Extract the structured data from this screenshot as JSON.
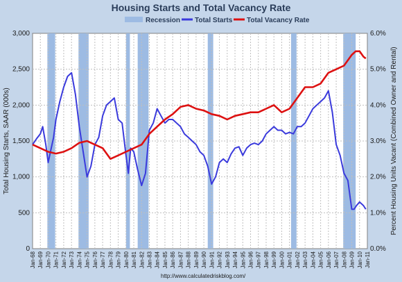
{
  "chart_data": {
    "type": "line",
    "title": "Housing Starts and Total Vacancy Rate",
    "source": "http://www.calculatedriskblog.com/",
    "legend": {
      "placement": "top-center",
      "entries": [
        "Recession",
        "Total Starts",
        "Total Vacancy Rate"
      ]
    },
    "xlabel": "",
    "ylabel_left": "Total Housing Starts, SAAR (000s)",
    "ylabel_right": "Percent Housing Units Vacant (Combined Owner and Rental)",
    "ylim_left": [
      0,
      3000
    ],
    "ylim_right": [
      0.0,
      6.0
    ],
    "yticks_left": [
      "0",
      "500",
      "1,000",
      "1,500",
      "2,000",
      "2,500",
      "3,000"
    ],
    "yticks_right": [
      "0.0%",
      "1.0%",
      "2.0%",
      "3.0%",
      "4.0%",
      "5.0%",
      "6.0%"
    ],
    "x_range": [
      1968.0,
      2011.0
    ],
    "x_ticks": [
      "Jan-68",
      "Jan-69",
      "Jan-70",
      "Jan-71",
      "Jan-72",
      "Jan-73",
      "Jan-74",
      "Jan-75",
      "Jan-76",
      "Jan-77",
      "Jan-78",
      "Jan-79",
      "Jan-80",
      "Jan-81",
      "Jan-82",
      "Jan-83",
      "Jan-84",
      "Jan-85",
      "Jan-86",
      "Jan-87",
      "Jan-88",
      "Jan-89",
      "Jan-90",
      "Jan-91",
      "Jan-92",
      "Jan-93",
      "Jan-94",
      "Jan-95",
      "Jan-96",
      "Jan-97",
      "Jan-98",
      "Jan-99",
      "Jan-00",
      "Jan-01",
      "Jan-02",
      "Jan-03",
      "Jan-04",
      "Jan-05",
      "Jan-06",
      "Jan-07",
      "Jan-08",
      "Jan-09",
      "Jan-10",
      "Jan-11"
    ],
    "grid": true,
    "recessions": [
      [
        1969.9,
        1970.9
      ],
      [
        1973.9,
        1975.2
      ],
      [
        1980.0,
        1980.5
      ],
      [
        1981.5,
        1982.9
      ],
      [
        1990.5,
        1991.2
      ],
      [
        2001.2,
        2001.9
      ],
      [
        2007.9,
        2009.5
      ]
    ],
    "series": [
      {
        "name": "Total Starts",
        "axis": "left",
        "color": "#3a3adc",
        "x": [
          1968.0,
          1968.5,
          1969.0,
          1969.3,
          1969.7,
          1970.0,
          1970.3,
          1970.7,
          1971.0,
          1971.5,
          1972.0,
          1972.5,
          1973.0,
          1973.5,
          1974.0,
          1974.5,
          1975.0,
          1975.5,
          1976.0,
          1976.5,
          1977.0,
          1977.5,
          1978.0,
          1978.5,
          1979.0,
          1979.5,
          1980.0,
          1980.3,
          1980.6,
          1981.0,
          1981.5,
          1982.0,
          1982.5,
          1983.0,
          1983.5,
          1984.0,
          1984.5,
          1985.0,
          1985.5,
          1986.0,
          1986.5,
          1987.0,
          1987.5,
          1988.0,
          1988.5,
          1989.0,
          1989.5,
          1990.0,
          1990.5,
          1991.0,
          1991.5,
          1992.0,
          1992.5,
          1993.0,
          1993.5,
          1994.0,
          1994.5,
          1995.0,
          1995.5,
          1996.0,
          1996.5,
          1997.0,
          1997.5,
          1998.0,
          1998.5,
          1999.0,
          1999.5,
          2000.0,
          2000.5,
          2001.0,
          2001.5,
          2002.0,
          2002.5,
          2003.0,
          2003.5,
          2004.0,
          2004.5,
          2005.0,
          2005.5,
          2006.0,
          2006.5,
          2007.0,
          2007.5,
          2008.0,
          2008.5,
          2009.0,
          2009.3,
          2009.6,
          2010.0,
          2010.5,
          2010.8
        ],
        "y": [
          1450,
          1530,
          1600,
          1700,
          1450,
          1200,
          1350,
          1550,
          1800,
          2050,
          2250,
          2400,
          2450,
          2150,
          1700,
          1350,
          1000,
          1150,
          1450,
          1550,
          1850,
          2000,
          2050,
          2100,
          1800,
          1750,
          1300,
          1050,
          1400,
          1350,
          1100,
          880,
          1050,
          1650,
          1750,
          1950,
          1850,
          1750,
          1800,
          1800,
          1750,
          1700,
          1600,
          1550,
          1500,
          1450,
          1350,
          1300,
          1150,
          900,
          1000,
          1200,
          1250,
          1200,
          1320,
          1400,
          1420,
          1300,
          1400,
          1450,
          1470,
          1450,
          1500,
          1600,
          1650,
          1700,
          1650,
          1650,
          1600,
          1620,
          1600,
          1700,
          1700,
          1750,
          1850,
          1950,
          2000,
          2050,
          2100,
          2200,
          1900,
          1450,
          1300,
          1050,
          950,
          550,
          550,
          600,
          650,
          600,
          550
        ]
      },
      {
        "name": "Total Vacancy Rate",
        "axis": "right",
        "color": "#dd1111",
        "x": [
          1968.0,
          1969.0,
          1970.0,
          1971.0,
          1972.0,
          1973.0,
          1974.0,
          1975.0,
          1976.0,
          1977.0,
          1978.0,
          1979.0,
          1980.0,
          1981.0,
          1982.0,
          1983.0,
          1984.0,
          1985.0,
          1986.0,
          1987.0,
          1988.0,
          1989.0,
          1990.0,
          1991.0,
          1992.0,
          1993.0,
          1994.0,
          1995.0,
          1996.0,
          1997.0,
          1998.0,
          1999.0,
          2000.0,
          2001.0,
          2002.0,
          2003.0,
          2004.0,
          2005.0,
          2006.0,
          2007.0,
          2008.0,
          2009.0,
          2009.5,
          2010.0,
          2010.5,
          2010.8
        ],
        "y": [
          2.9,
          2.8,
          2.7,
          2.65,
          2.7,
          2.8,
          2.95,
          3.0,
          2.9,
          2.8,
          2.5,
          2.6,
          2.7,
          2.8,
          2.9,
          3.2,
          3.4,
          3.6,
          3.75,
          3.95,
          4.0,
          3.9,
          3.85,
          3.75,
          3.7,
          3.6,
          3.7,
          3.75,
          3.8,
          3.8,
          3.9,
          4.0,
          3.8,
          3.9,
          4.2,
          4.5,
          4.5,
          4.6,
          4.9,
          5.0,
          5.1,
          5.4,
          5.5,
          5.5,
          5.35,
          5.3
        ]
      }
    ]
  }
}
